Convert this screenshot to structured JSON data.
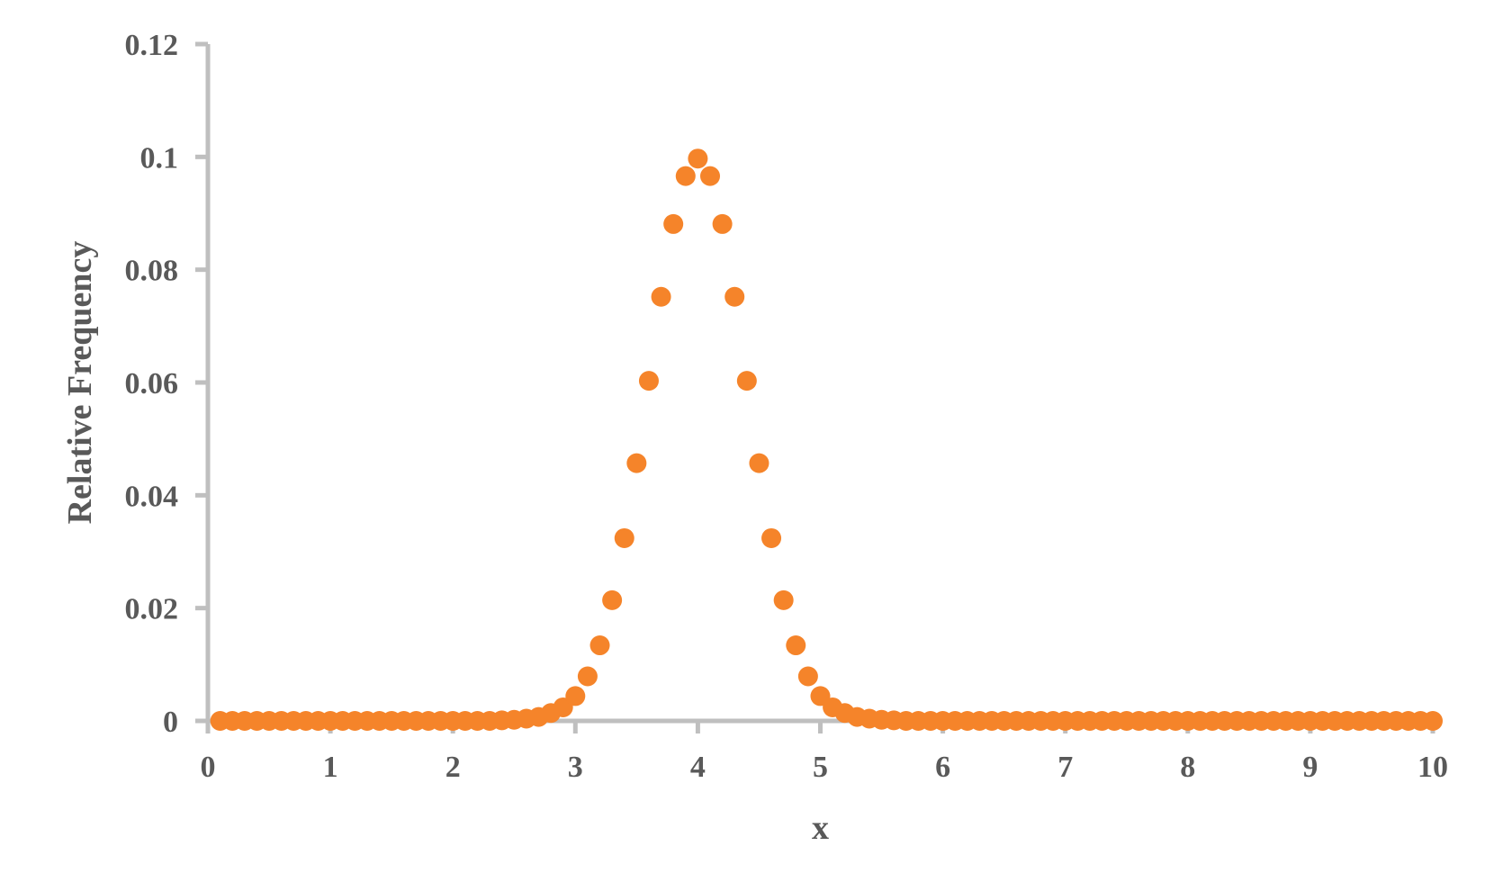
{
  "chart_data": {
    "type": "scatter",
    "title": "",
    "xlabel": "x",
    "ylabel": "Relative Frequency",
    "xlim": [
      0,
      10
    ],
    "ylim": [
      0,
      0.12
    ],
    "x_ticks": [
      "0",
      "1",
      "2",
      "3",
      "4",
      "5",
      "6",
      "7",
      "8",
      "9",
      "10"
    ],
    "y_ticks": [
      "0",
      "0.02",
      "0.04",
      "0.06",
      "0.08",
      "0.1",
      "0.12"
    ],
    "grid": false,
    "legend": "none",
    "colors": {
      "marker": "#F5842A",
      "axis": "#BFBFBF",
      "text": "#595959"
    },
    "series": [
      {
        "x": [
          0.1,
          0.2,
          0.3,
          0.4,
          0.5,
          0.6,
          0.7,
          0.8,
          0.9,
          1.0,
          1.1,
          1.2,
          1.3,
          1.4,
          1.5,
          1.6,
          1.7,
          1.8,
          1.9,
          2.0,
          2.1,
          2.2,
          2.3,
          2.4,
          2.5,
          2.6,
          2.7,
          2.8,
          2.9,
          3.0,
          3.1,
          3.2,
          3.3,
          3.4,
          3.5,
          3.6,
          3.7,
          3.8,
          3.9,
          4.0,
          4.1,
          4.2,
          4.3,
          4.4,
          4.5,
          4.6,
          4.7,
          4.8,
          4.9,
          5.0,
          5.1,
          5.2,
          5.3,
          5.4,
          5.5,
          5.6,
          5.7,
          5.8,
          5.9,
          6.0,
          6.1,
          6.2,
          6.3,
          6.4,
          6.5,
          6.6,
          6.7,
          6.8,
          6.9,
          7.0,
          7.1,
          7.2,
          7.3,
          7.4,
          7.5,
          7.6,
          7.7,
          7.8,
          7.9,
          8.0,
          8.1,
          8.2,
          8.3,
          8.4,
          8.5,
          8.6,
          8.7,
          8.8,
          8.9,
          9.0,
          9.1,
          9.2,
          9.3,
          9.4,
          9.5,
          9.6,
          9.7,
          9.8,
          9.9,
          10.0
        ],
        "y": [
          0,
          0,
          0,
          0,
          0,
          0,
          0,
          0,
          0,
          0,
          0,
          0,
          0,
          0,
          0,
          0,
          0,
          0,
          0,
          0,
          0,
          0,
          0,
          0.0001,
          0.0002,
          0.0004,
          0.0007,
          0.0014,
          0.0024,
          0.0044,
          0.0079,
          0.0134,
          0.0214,
          0.0324,
          0.0457,
          0.0603,
          0.0752,
          0.0881,
          0.0966,
          0.0997,
          0.0966,
          0.0881,
          0.0752,
          0.0603,
          0.0457,
          0.0324,
          0.0214,
          0.0134,
          0.0079,
          0.0044,
          0.0024,
          0.0014,
          0.0007,
          0.0004,
          0.0002,
          0.0001,
          0,
          0,
          0,
          0,
          0,
          0,
          0,
          0,
          0,
          0,
          0,
          0,
          0,
          0,
          0,
          0,
          0,
          0,
          0,
          0,
          0,
          0,
          0,
          0,
          0,
          0,
          0,
          0,
          0,
          0,
          0,
          0,
          0,
          0,
          0,
          0,
          0,
          0,
          0,
          0,
          0,
          0,
          0,
          0
        ]
      }
    ]
  }
}
